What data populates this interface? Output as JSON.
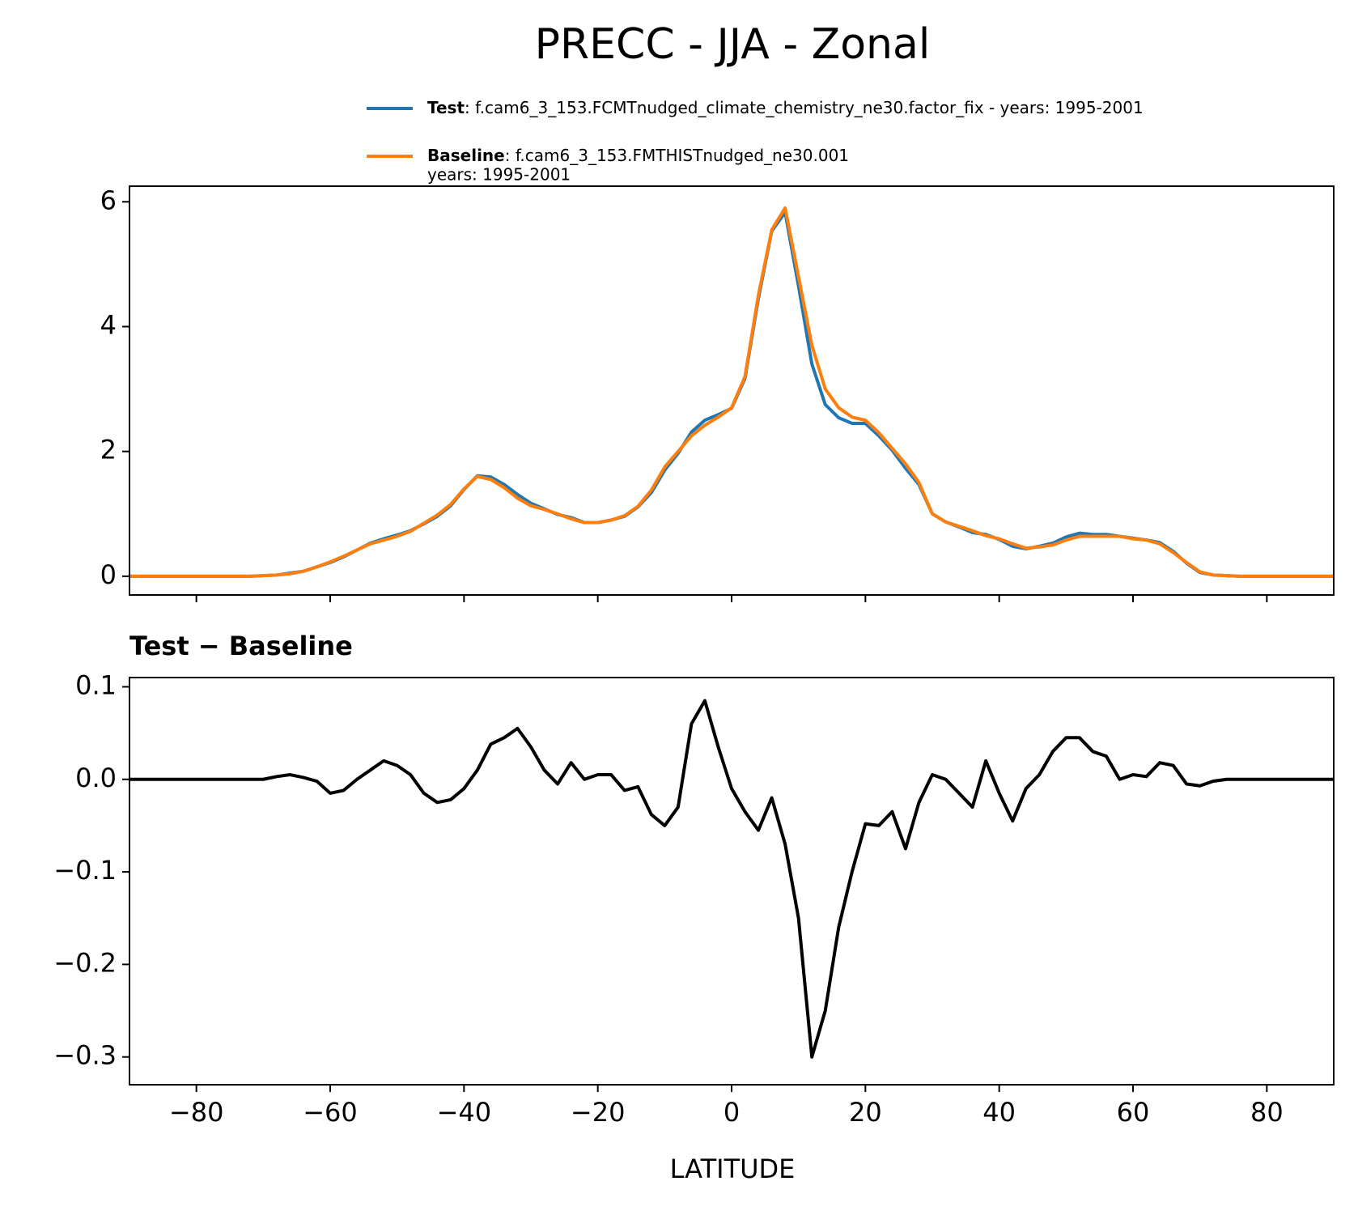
{
  "chart_data": [
    {
      "type": "line",
      "title": "PRECC - JJA - Zonal",
      "x": [
        -90,
        -88,
        -86,
        -84,
        -82,
        -80,
        -78,
        -76,
        -74,
        -72,
        -70,
        -68,
        -66,
        -64,
        -62,
        -60,
        -58,
        -56,
        -54,
        -52,
        -50,
        -48,
        -46,
        -44,
        -42,
        -40,
        -38,
        -36,
        -34,
        -32,
        -30,
        -28,
        -26,
        -24,
        -22,
        -20,
        -18,
        -16,
        -14,
        -12,
        -10,
        -8,
        -6,
        -4,
        -2,
        0,
        2,
        4,
        6,
        8,
        10,
        12,
        14,
        16,
        18,
        20,
        22,
        24,
        26,
        28,
        30,
        32,
        34,
        36,
        38,
        40,
        42,
        44,
        46,
        48,
        50,
        52,
        54,
        56,
        58,
        60,
        62,
        64,
        66,
        68,
        70,
        72,
        74,
        76,
        78,
        80,
        82,
        84,
        86,
        88,
        90
      ],
      "series": [
        {
          "name": "Test",
          "description": [
            ": f.cam6_3_153.FCMTnudged_climate_chemistry_ne30.factor_fix - years: 1995-2001"
          ],
          "color": "#1f77b4",
          "values": [
            0,
            0,
            0,
            0,
            0,
            0,
            0,
            0,
            0,
            0,
            0.01,
            0.02,
            0.05,
            0.08,
            0.15,
            0.22,
            0.31,
            0.42,
            0.53,
            0.6,
            0.66,
            0.73,
            0.84,
            0.96,
            1.13,
            1.39,
            1.61,
            1.59,
            1.47,
            1.31,
            1.17,
            1.08,
            0.99,
            0.94,
            0.86,
            0.86,
            0.9,
            0.96,
            1.11,
            1.34,
            1.7,
            1.97,
            2.31,
            2.5,
            2.59,
            2.69,
            3.17,
            4.45,
            5.53,
            5.83,
            4.65,
            3.4,
            2.75,
            2.54,
            2.45,
            2.45,
            2.25,
            2.02,
            1.73,
            1.47,
            1.0,
            0.87,
            0.79,
            0.7,
            0.67,
            0.59,
            0.48,
            0.44,
            0.48,
            0.53,
            0.63,
            0.69,
            0.67,
            0.67,
            0.64,
            0.61,
            0.58,
            0.54,
            0.4,
            0.21,
            0.06,
            0.02,
            0.01,
            0,
            0,
            0,
            0,
            0,
            0,
            0,
            0
          ]
        },
        {
          "name": "Baseline",
          "description": [
            ": f.cam6_3_153.FMTHISTnudged_ne30.001",
            "years: 1995-2001"
          ],
          "color": "#ff7f0e",
          "values": [
            0,
            0,
            0,
            0,
            0,
            0,
            0,
            0,
            0,
            0,
            0.01,
            0.02,
            0.04,
            0.08,
            0.15,
            0.23,
            0.32,
            0.42,
            0.52,
            0.58,
            0.64,
            0.72,
            0.85,
            0.98,
            1.15,
            1.4,
            1.6,
            1.55,
            1.42,
            1.25,
            1.13,
            1.07,
            1.0,
            0.92,
            0.86,
            0.86,
            0.9,
            0.97,
            1.12,
            1.38,
            1.75,
            2.0,
            2.25,
            2.42,
            2.55,
            2.7,
            3.2,
            4.5,
            5.55,
            5.9,
            4.8,
            3.7,
            3.0,
            2.7,
            2.55,
            2.5,
            2.3,
            2.05,
            1.8,
            1.5,
            1.0,
            0.87,
            0.8,
            0.73,
            0.65,
            0.6,
            0.52,
            0.45,
            0.47,
            0.5,
            0.58,
            0.64,
            0.64,
            0.64,
            0.64,
            0.6,
            0.58,
            0.52,
            0.38,
            0.22,
            0.07,
            0.02,
            0.01,
            0,
            0,
            0,
            0,
            0,
            0,
            0,
            0
          ]
        }
      ],
      "xlim": [
        -90,
        90
      ],
      "xticks": [
        -80,
        -60,
        -40,
        -20,
        0,
        20,
        40,
        60,
        80
      ],
      "ylim": [
        -0.3,
        6.25
      ],
      "yticks": [
        0,
        2,
        4,
        6
      ]
    },
    {
      "type": "line",
      "subtitle": "Test − Baseline",
      "xlabel": "LATITUDE",
      "x": [
        -90,
        -88,
        -86,
        -84,
        -82,
        -80,
        -78,
        -76,
        -74,
        -72,
        -70,
        -68,
        -66,
        -64,
        -62,
        -60,
        -58,
        -56,
        -54,
        -52,
        -50,
        -48,
        -46,
        -44,
        -42,
        -40,
        -38,
        -36,
        -34,
        -32,
        -30,
        -28,
        -26,
        -24,
        -22,
        -20,
        -18,
        -16,
        -14,
        -12,
        -10,
        -8,
        -6,
        -4,
        -2,
        0,
        2,
        4,
        6,
        8,
        10,
        12,
        14,
        16,
        18,
        20,
        22,
        24,
        26,
        28,
        30,
        32,
        34,
        36,
        38,
        40,
        42,
        44,
        46,
        48,
        50,
        52,
        54,
        56,
        58,
        60,
        62,
        64,
        66,
        68,
        70,
        72,
        74,
        76,
        78,
        80,
        82,
        84,
        86,
        88,
        90
      ],
      "series": [
        {
          "color": "#000000",
          "values": [
            0,
            0,
            0,
            0,
            0,
            0,
            0,
            0,
            0,
            0,
            0,
            0.003,
            0.005,
            0.002,
            -0.002,
            -0.015,
            -0.012,
            0.0,
            0.01,
            0.02,
            0.015,
            0.005,
            -0.015,
            -0.025,
            -0.022,
            -0.01,
            0.01,
            0.038,
            0.045,
            0.055,
            0.035,
            0.01,
            -0.005,
            0.018,
            0.0,
            0.005,
            0.005,
            -0.012,
            -0.008,
            -0.038,
            -0.05,
            -0.03,
            0.06,
            0.085,
            0.035,
            -0.01,
            -0.035,
            -0.055,
            -0.02,
            -0.07,
            -0.15,
            -0.3,
            -0.25,
            -0.16,
            -0.1,
            -0.048,
            -0.05,
            -0.035,
            -0.075,
            -0.025,
            0.005,
            0.0,
            -0.015,
            -0.03,
            0.02,
            -0.015,
            -0.045,
            -0.01,
            0.005,
            0.03,
            0.045,
            0.045,
            0.03,
            0.025,
            0.0,
            0.005,
            0.003,
            0.018,
            0.015,
            -0.005,
            -0.007,
            -0.002,
            0,
            0,
            0,
            0,
            0,
            0,
            0,
            0,
            0
          ]
        }
      ],
      "xlim": [
        -90,
        90
      ],
      "xticks": [
        {
          "value": -80,
          "label": "−80"
        },
        {
          "value": -60,
          "label": "−60"
        },
        {
          "value": -40,
          "label": "−40"
        },
        {
          "value": -20,
          "label": "−20"
        },
        0,
        20,
        40,
        60,
        80
      ],
      "ylim": [
        -0.33,
        0.11
      ],
      "yticks": [
        {
          "value": -0.3,
          "label": "−0.3"
        },
        {
          "value": -0.2,
          "label": "−0.2"
        },
        {
          "value": -0.1,
          "label": "−0.1"
        },
        {
          "value": 0,
          "label": "0.0"
        },
        {
          "value": 0.1,
          "label": "0.1"
        }
      ]
    }
  ]
}
